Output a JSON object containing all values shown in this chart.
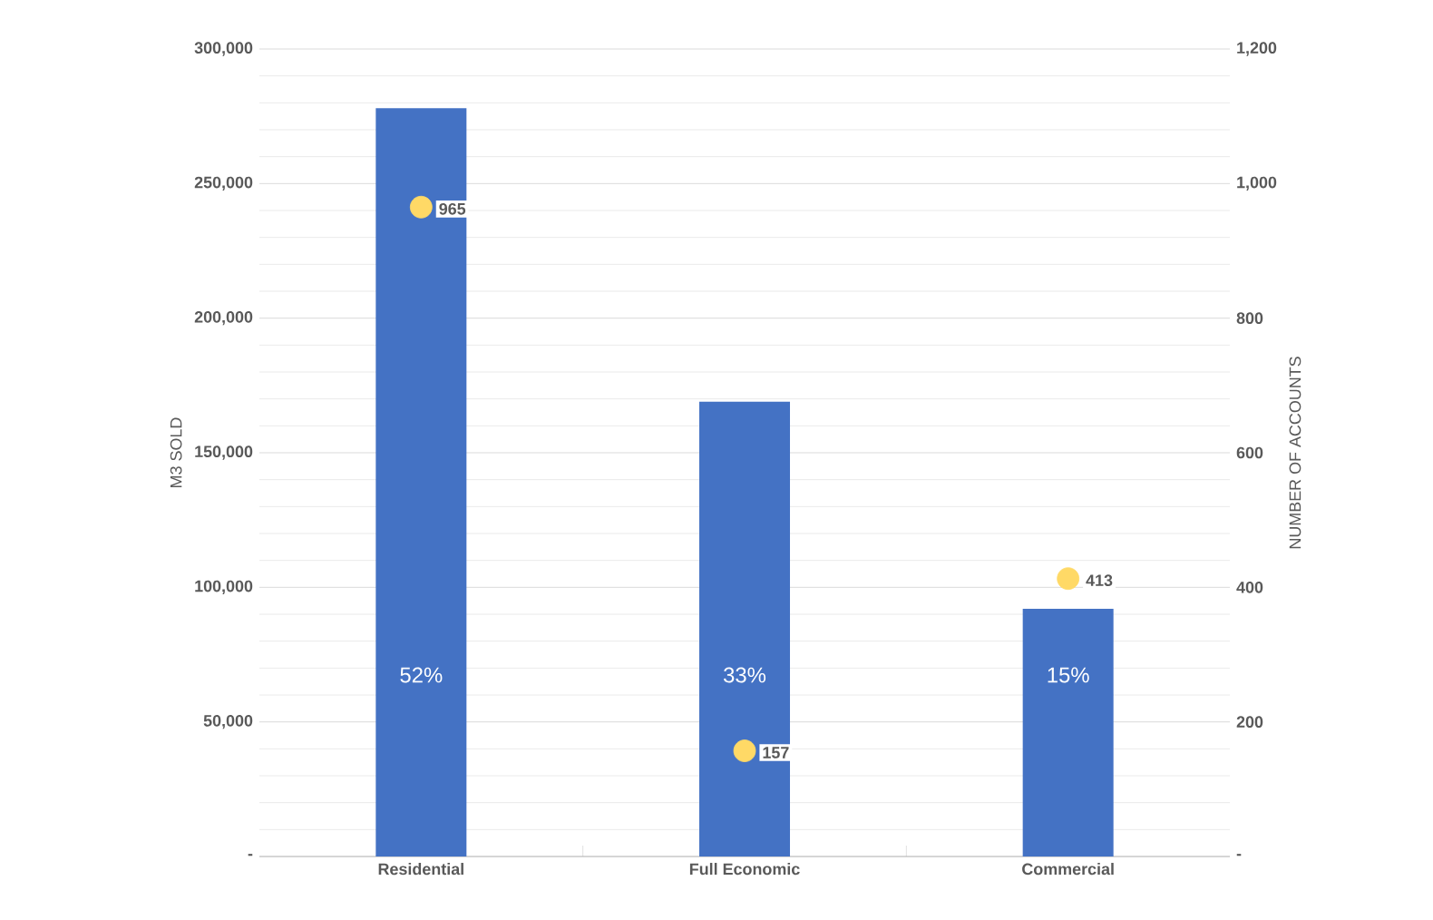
{
  "chart_data": {
    "type": "bar",
    "ylabel": "M3 SOLD",
    "y2label": "NUMBER OF ACCOUNTS",
    "categories": [
      "Residential",
      "Full Economic",
      "Commercial"
    ],
    "series": [
      {
        "color": "#4472c4",
        "values": [
          278000,
          169000,
          92000
        ]
      },
      {
        "type": "scatter",
        "axis": "y2",
        "color": "#ffd966",
        "values": [
          965,
          157,
          413
        ],
        "value_labels": [
          "965",
          "157",
          "413"
        ]
      }
    ],
    "ylim": [
      0,
      300000
    ],
    "yticks": [
      {
        "value": 0,
        "label": "-"
      },
      {
        "value": 50000,
        "label": "50,000"
      },
      {
        "value": 100000,
        "label": "100,000"
      },
      {
        "value": 150000,
        "label": "150,000"
      },
      {
        "value": 200000,
        "label": "200,000"
      },
      {
        "value": 250000,
        "label": "250,000"
      },
      {
        "value": 300000,
        "label": "300,000"
      }
    ],
    "y2lim": [
      0,
      1200
    ],
    "y2ticks": [
      {
        "value": 0,
        "label": "-"
      },
      200,
      400,
      600,
      800,
      {
        "value": 1000,
        "label": "1,000"
      },
      {
        "value": 1200,
        "label": "1,200"
      }
    ],
    "annotations": [
      "52%",
      "33%",
      "15%"
    ],
    "grid": "y",
    "legend": false
  }
}
